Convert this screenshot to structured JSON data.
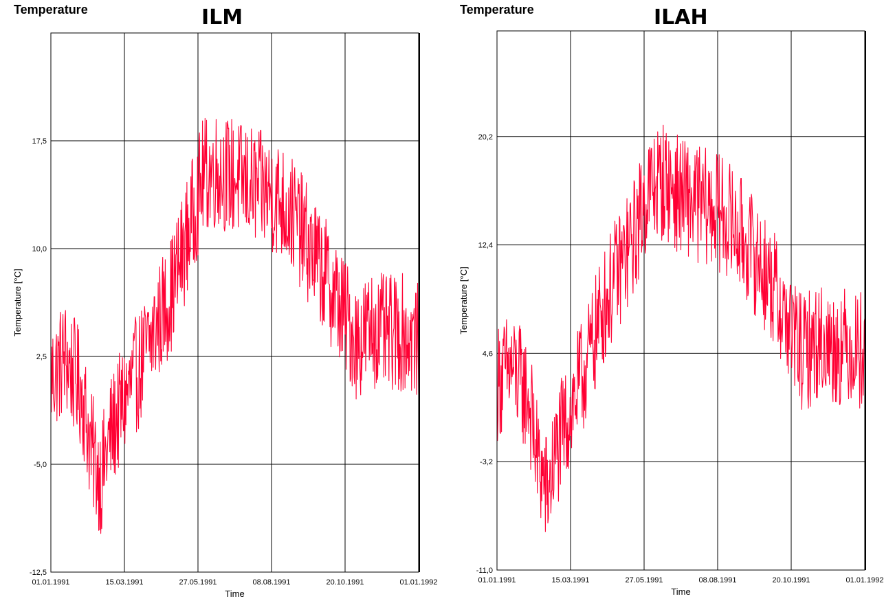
{
  "chart_data": [
    {
      "type": "line",
      "window_title": "Temperature",
      "title": "ILM",
      "xlabel": "Time",
      "ylabel": "Temperature [°C]",
      "x_ticks": [
        "01.01.1991",
        "15.03.1991",
        "27.05.1991",
        "08.08.1991",
        "20.10.1991",
        "01.01.1992"
      ],
      "y_ticks": [
        "-12,5",
        "-5,0",
        "2,5",
        "10,0",
        "17,5"
      ],
      "y_tick_values": [
        -12.5,
        -5.0,
        2.5,
        10.0,
        17.5
      ],
      "ylim": [
        -12.5,
        25.0
      ],
      "xlim": [
        "1991-01-01",
        "1992-01-01"
      ],
      "grid": true,
      "series": [
        {
          "color": "#ff0033",
          "x": [
            "1991-01-01",
            "1991-01-15",
            "1991-02-01",
            "1991-02-10",
            "1991-02-20",
            "1991-03-01",
            "1991-03-15",
            "1991-04-01",
            "1991-04-15",
            "1991-05-01",
            "1991-05-15",
            "1991-06-01",
            "1991-06-15",
            "1991-07-01",
            "1991-07-15",
            "1991-08-01",
            "1991-08-15",
            "1991-09-01",
            "1991-09-15",
            "1991-10-01",
            "1991-10-15",
            "1991-11-01",
            "1991-11-15",
            "1991-12-01",
            "1991-12-15",
            "1992-01-01"
          ],
          "y": [
            1.0,
            2.5,
            0.0,
            -4.0,
            -6.0,
            -3.0,
            -0.5,
            2.0,
            4.5,
            7.0,
            10.5,
            15.0,
            15.5,
            15.0,
            14.5,
            14.0,
            13.5,
            12.0,
            10.0,
            8.0,
            6.0,
            3.5,
            4.5,
            4.0,
            4.2,
            3.5
          ]
        }
      ]
    },
    {
      "type": "line",
      "window_title": "Temperature",
      "title": "ILAH",
      "xlabel": "Time",
      "ylabel": "Temperature [°C]",
      "x_ticks": [
        "01.01.1991",
        "15.03.1991",
        "27.05.1991",
        "08.08.1991",
        "20.10.1991",
        "01.01.1992"
      ],
      "y_ticks": [
        "-11,0",
        "-3,2",
        "4,6",
        "12,4",
        "20,2"
      ],
      "y_tick_values": [
        -11.0,
        -3.2,
        4.6,
        12.4,
        20.2
      ],
      "ylim": [
        -11.0,
        27.8
      ],
      "xlim": [
        "1991-01-01",
        "1992-01-01"
      ],
      "grid": true,
      "series": [
        {
          "color": "#ff0033",
          "x": [
            "1991-01-01",
            "1991-01-15",
            "1991-02-01",
            "1991-02-10",
            "1991-02-20",
            "1991-03-01",
            "1991-03-15",
            "1991-04-01",
            "1991-04-15",
            "1991-05-01",
            "1991-05-15",
            "1991-06-01",
            "1991-06-15",
            "1991-07-01",
            "1991-07-15",
            "1991-08-01",
            "1991-08-15",
            "1991-09-01",
            "1991-09-15",
            "1991-10-01",
            "1991-10-15",
            "1991-11-01",
            "1991-11-15",
            "1991-12-01",
            "1991-12-15",
            "1992-01-01"
          ],
          "y": [
            2.5,
            3.5,
            1.5,
            -3.0,
            -5.5,
            -2.5,
            0.5,
            4.0,
            7.5,
            10.5,
            12.5,
            16.5,
            17.0,
            16.0,
            15.5,
            15.0,
            14.5,
            13.0,
            11.5,
            9.5,
            7.0,
            4.5,
            5.5,
            5.0,
            5.2,
            4.8
          ]
        }
      ]
    }
  ]
}
